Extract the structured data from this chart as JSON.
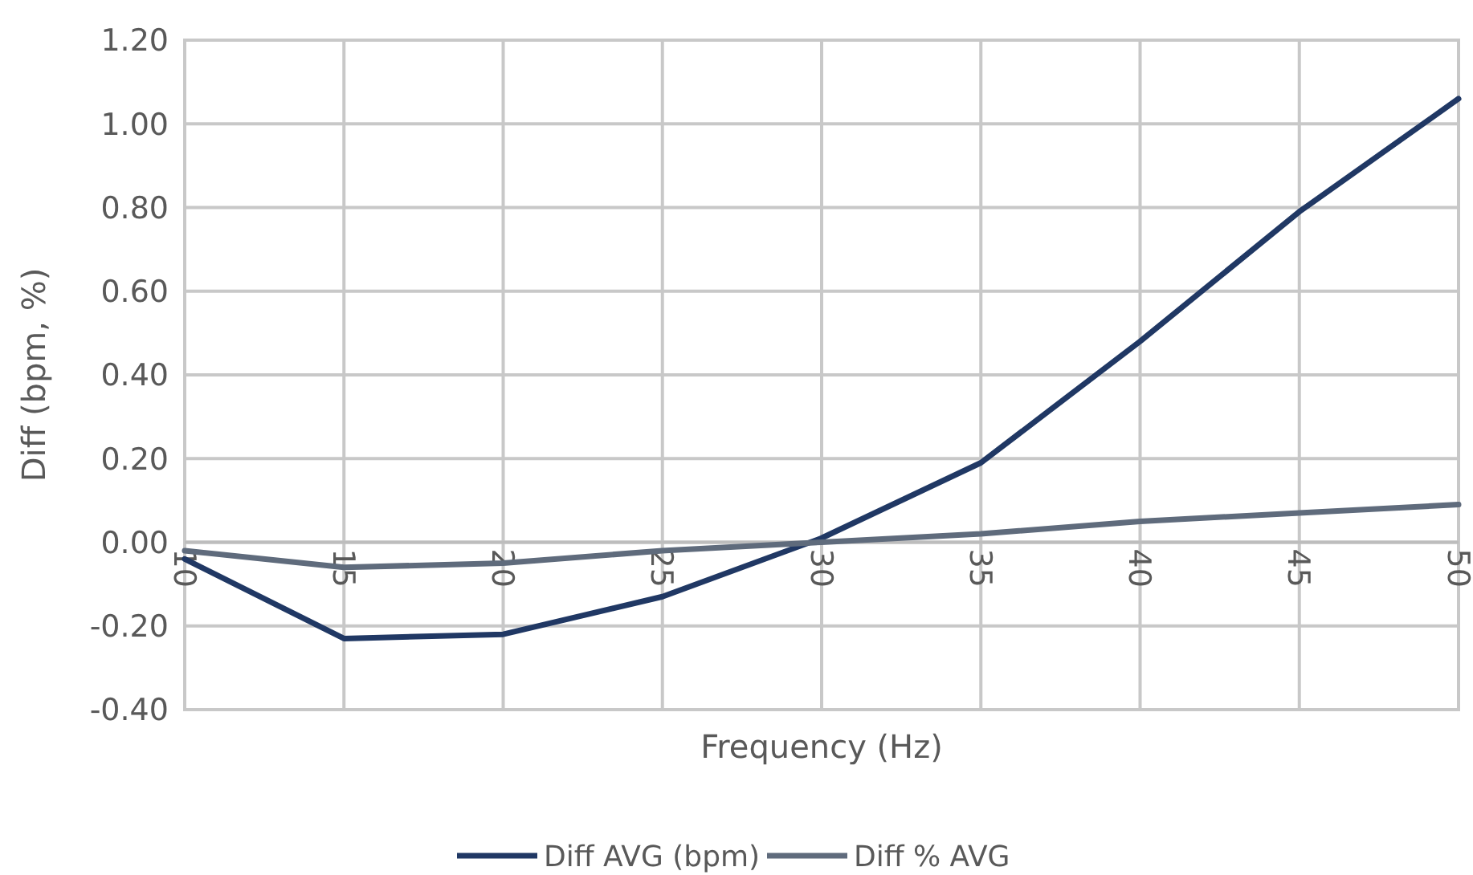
{
  "chart_data": {
    "type": "line",
    "xlabel": "Frequency (Hz)",
    "ylabel": "Diff (bpm, %)",
    "x": [
      10,
      15,
      20,
      25,
      30,
      35,
      40,
      45,
      50
    ],
    "series": [
      {
        "name": "Diff AVG (bpm)",
        "color": "#203864",
        "values": [
          -0.04,
          -0.23,
          -0.22,
          -0.13,
          0.01,
          0.19,
          0.48,
          0.79,
          1.06
        ]
      },
      {
        "name": "Diff % AVG",
        "color": "#5f6b7c",
        "values": [
          -0.02,
          -0.06,
          -0.05,
          -0.02,
          0.0,
          0.02,
          0.05,
          0.07,
          0.09
        ]
      }
    ],
    "xlim": [
      10,
      50
    ],
    "xticks": [
      10,
      15,
      20,
      25,
      30,
      35,
      40,
      45,
      50
    ],
    "ylim": [
      -0.4,
      1.2
    ],
    "yticks": [
      {
        "value": -0.4,
        "label": "-0.40"
      },
      {
        "value": -0.2,
        "label": "-0.20"
      },
      {
        "value": 0,
        "label": "0.00"
      },
      {
        "value": 0.2,
        "label": "0.20"
      },
      {
        "value": 0.4,
        "label": "0.40"
      },
      {
        "value": 0.6,
        "label": "0.60"
      },
      {
        "value": 0.8,
        "label": "0.80"
      },
      {
        "value": 1.0,
        "label": "1.00"
      },
      {
        "value": 1.2,
        "label": "1.20"
      }
    ],
    "grid": true,
    "legend": "bottom",
    "marker": "none",
    "line_style": "solid"
  }
}
